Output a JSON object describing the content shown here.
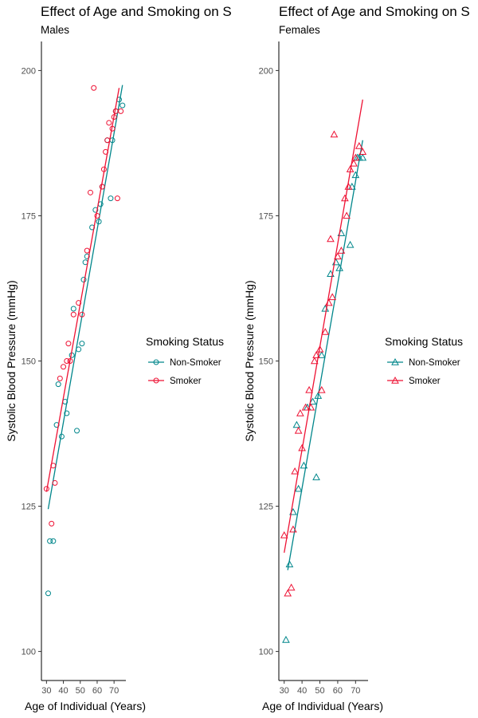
{
  "chart_data": [
    {
      "type": "scatter",
      "title": "Effect of Age and Smoking on S",
      "subtitle": "Males",
      "xlabel": "Age of Individual (Years)",
      "ylabel": "Systolic Blood Pressure (mmHg)",
      "xlim": [
        27,
        77
      ],
      "ylim": [
        95,
        205
      ],
      "xticks": [
        30,
        40,
        50,
        60,
        70
      ],
      "yticks": [
        100,
        125,
        150,
        175,
        200
      ],
      "marker": "circle",
      "legend_title": "Smoking Status",
      "legend_position": "right",
      "grid": false,
      "series": [
        {
          "name": "Non-Smoker",
          "color": "#00868B",
          "points": [
            [
              31,
              110
            ],
            [
              32,
              119
            ],
            [
              34,
              119
            ],
            [
              36,
              139
            ],
            [
              37,
              146
            ],
            [
              39,
              137
            ],
            [
              41,
              143
            ],
            [
              42,
              141
            ],
            [
              45,
              151
            ],
            [
              46,
              159
            ],
            [
              48,
              138
            ],
            [
              49,
              152
            ],
            [
              51,
              153
            ],
            [
              52,
              164
            ],
            [
              53,
              167
            ],
            [
              54,
              168
            ],
            [
              57,
              173
            ],
            [
              59,
              176
            ],
            [
              61,
              174
            ],
            [
              62,
              177
            ],
            [
              63,
              180
            ],
            [
              66,
              188
            ],
            [
              68,
              178
            ],
            [
              69,
              188
            ],
            [
              71,
              193
            ],
            [
              73,
              195
            ],
            [
              75,
              194
            ]
          ],
          "fit": [
            [
              31,
              124.5
            ],
            [
              75,
              197.5
            ]
          ]
        },
        {
          "name": "Smoker",
          "color": "#EE1133",
          "points": [
            [
              30,
              128
            ],
            [
              33,
              122
            ],
            [
              34,
              132
            ],
            [
              35,
              129
            ],
            [
              38,
              147
            ],
            [
              40,
              149
            ],
            [
              42,
              150
            ],
            [
              43,
              153
            ],
            [
              44,
              150
            ],
            [
              46,
              158
            ],
            [
              49,
              160
            ],
            [
              51,
              158
            ],
            [
              54,
              169
            ],
            [
              56,
              179
            ],
            [
              58,
              197
            ],
            [
              60,
              175
            ],
            [
              63,
              180
            ],
            [
              64,
              183
            ],
            [
              65,
              186
            ],
            [
              66,
              188
            ],
            [
              67,
              191
            ],
            [
              69,
              190
            ],
            [
              70,
              192
            ],
            [
              71,
              193
            ],
            [
              72,
              178
            ],
            [
              74,
              193
            ]
          ],
          "fit": [
            [
              30,
              127.5
            ],
            [
              73,
              197
            ]
          ]
        }
      ]
    },
    {
      "type": "scatter",
      "title": "Effect of Age and Smoking on S",
      "subtitle": "Females",
      "xlabel": "Age of Individual (Years)",
      "ylabel": "Systolic Blood Pressure (mmHg)",
      "xlim": [
        27,
        77
      ],
      "ylim": [
        95,
        205
      ],
      "xticks": [
        30,
        40,
        50,
        60,
        70
      ],
      "yticks": [
        100,
        125,
        150,
        175,
        200
      ],
      "marker": "triangle",
      "legend_title": "Smoking Status",
      "legend_position": "right",
      "grid": false,
      "series": [
        {
          "name": "Non-Smoker",
          "color": "#00868B",
          "points": [
            [
              31,
              102
            ],
            [
              33,
              115
            ],
            [
              35,
              124
            ],
            [
              37,
              139
            ],
            [
              38,
              128
            ],
            [
              41,
              132
            ],
            [
              43,
              142
            ],
            [
              46,
              143
            ],
            [
              48,
              130
            ],
            [
              49,
              144
            ],
            [
              51,
              151
            ],
            [
              53,
              159
            ],
            [
              56,
              165
            ],
            [
              59,
              167
            ],
            [
              61,
              166
            ],
            [
              62,
              172
            ],
            [
              67,
              170
            ],
            [
              68,
              180
            ],
            [
              70,
              182
            ],
            [
              71,
              185
            ],
            [
              72,
              185
            ],
            [
              74,
              185
            ]
          ],
          "fit": [
            [
              32,
              114
            ],
            [
              74,
              188
            ]
          ]
        },
        {
          "name": "Smoker",
          "color": "#EE1133",
          "points": [
            [
              30,
              120
            ],
            [
              32,
              110
            ],
            [
              34,
              111
            ],
            [
              35,
              121
            ],
            [
              36,
              131
            ],
            [
              38,
              138
            ],
            [
              39,
              141
            ],
            [
              40,
              135
            ],
            [
              42,
              142
            ],
            [
              44,
              145
            ],
            [
              45,
              142
            ],
            [
              47,
              150
            ],
            [
              48,
              151
            ],
            [
              50,
              152
            ],
            [
              51,
              145
            ],
            [
              53,
              155
            ],
            [
              55,
              160
            ],
            [
              57,
              161
            ],
            [
              56,
              171
            ],
            [
              58,
              189
            ],
            [
              60,
              168
            ],
            [
              62,
              169
            ],
            [
              64,
              178
            ],
            [
              65,
              175
            ],
            [
              66,
              180
            ],
            [
              67,
              183
            ],
            [
              69,
              184
            ],
            [
              70,
              185
            ],
            [
              72,
              187
            ],
            [
              74,
              186
            ]
          ],
          "fit": [
            [
              30,
              117
            ],
            [
              74,
              195
            ]
          ]
        }
      ]
    }
  ]
}
